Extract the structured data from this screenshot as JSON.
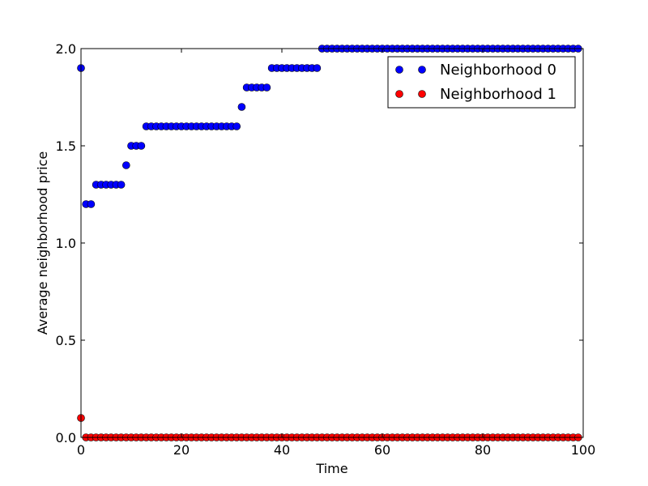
{
  "chart_data": {
    "type": "scatter",
    "xlabel": "Time",
    "ylabel": "Average neighborhood price",
    "xlim": [
      0,
      100
    ],
    "ylim": [
      0.0,
      2.0
    ],
    "x_ticks": [
      "0",
      "20",
      "40",
      "60",
      "80",
      "100"
    ],
    "y_ticks": [
      "0.0",
      "0.5",
      "1.0",
      "1.5",
      "2.0"
    ],
    "grid": false,
    "legend_position": "top-right",
    "series": [
      {
        "name": "Neighborhood 0",
        "color": "#0000ff",
        "points": [
          [
            0,
            1.9
          ],
          [
            1,
            1.2
          ],
          [
            2,
            1.2
          ],
          [
            3,
            1.3
          ],
          [
            4,
            1.3
          ],
          [
            5,
            1.3
          ],
          [
            6,
            1.3
          ],
          [
            7,
            1.3
          ],
          [
            8,
            1.3
          ],
          [
            9,
            1.4
          ],
          [
            10,
            1.5
          ],
          [
            11,
            1.5
          ],
          [
            12,
            1.5
          ],
          [
            13,
            1.6
          ],
          [
            14,
            1.6
          ],
          [
            15,
            1.6
          ],
          [
            16,
            1.6
          ],
          [
            17,
            1.6
          ],
          [
            18,
            1.6
          ],
          [
            19,
            1.6
          ],
          [
            20,
            1.6
          ],
          [
            21,
            1.6
          ],
          [
            22,
            1.6
          ],
          [
            23,
            1.6
          ],
          [
            24,
            1.6
          ],
          [
            25,
            1.6
          ],
          [
            26,
            1.6
          ],
          [
            27,
            1.6
          ],
          [
            28,
            1.6
          ],
          [
            29,
            1.6
          ],
          [
            30,
            1.6
          ],
          [
            31,
            1.6
          ],
          [
            32,
            1.7
          ],
          [
            33,
            1.8
          ],
          [
            34,
            1.8
          ],
          [
            35,
            1.8
          ],
          [
            36,
            1.8
          ],
          [
            37,
            1.8
          ],
          [
            38,
            1.9
          ],
          [
            39,
            1.9
          ],
          [
            40,
            1.9
          ],
          [
            41,
            1.9
          ],
          [
            42,
            1.9
          ],
          [
            43,
            1.9
          ],
          [
            44,
            1.9
          ],
          [
            45,
            1.9
          ],
          [
            46,
            1.9
          ],
          [
            47,
            1.9
          ],
          [
            48,
            2.0
          ],
          [
            49,
            2.0
          ],
          [
            50,
            2.0
          ],
          [
            51,
            2.0
          ],
          [
            52,
            2.0
          ],
          [
            53,
            2.0
          ],
          [
            54,
            2.0
          ],
          [
            55,
            2.0
          ],
          [
            56,
            2.0
          ],
          [
            57,
            2.0
          ],
          [
            58,
            2.0
          ],
          [
            59,
            2.0
          ],
          [
            60,
            2.0
          ],
          [
            61,
            2.0
          ],
          [
            62,
            2.0
          ],
          [
            63,
            2.0
          ],
          [
            64,
            2.0
          ],
          [
            65,
            2.0
          ],
          [
            66,
            2.0
          ],
          [
            67,
            2.0
          ],
          [
            68,
            2.0
          ],
          [
            69,
            2.0
          ],
          [
            70,
            2.0
          ],
          [
            71,
            2.0
          ],
          [
            72,
            2.0
          ],
          [
            73,
            2.0
          ],
          [
            74,
            2.0
          ],
          [
            75,
            2.0
          ],
          [
            76,
            2.0
          ],
          [
            77,
            2.0
          ],
          [
            78,
            2.0
          ],
          [
            79,
            2.0
          ],
          [
            80,
            2.0
          ],
          [
            81,
            2.0
          ],
          [
            82,
            2.0
          ],
          [
            83,
            2.0
          ],
          [
            84,
            2.0
          ],
          [
            85,
            2.0
          ],
          [
            86,
            2.0
          ],
          [
            87,
            2.0
          ],
          [
            88,
            2.0
          ],
          [
            89,
            2.0
          ],
          [
            90,
            2.0
          ],
          [
            91,
            2.0
          ],
          [
            92,
            2.0
          ],
          [
            93,
            2.0
          ],
          [
            94,
            2.0
          ],
          [
            95,
            2.0
          ],
          [
            96,
            2.0
          ],
          [
            97,
            2.0
          ],
          [
            98,
            2.0
          ],
          [
            99,
            2.0
          ]
        ]
      },
      {
        "name": "Neighborhood 1",
        "color": "#ff0000",
        "points": [
          [
            0,
            0.1
          ],
          [
            1,
            0.0
          ],
          [
            2,
            0.0
          ],
          [
            3,
            0.0
          ],
          [
            4,
            0.0
          ],
          [
            5,
            0.0
          ],
          [
            6,
            0.0
          ],
          [
            7,
            0.0
          ],
          [
            8,
            0.0
          ],
          [
            9,
            0.0
          ],
          [
            10,
            0.0
          ],
          [
            11,
            0.0
          ],
          [
            12,
            0.0
          ],
          [
            13,
            0.0
          ],
          [
            14,
            0.0
          ],
          [
            15,
            0.0
          ],
          [
            16,
            0.0
          ],
          [
            17,
            0.0
          ],
          [
            18,
            0.0
          ],
          [
            19,
            0.0
          ],
          [
            20,
            0.0
          ],
          [
            21,
            0.0
          ],
          [
            22,
            0.0
          ],
          [
            23,
            0.0
          ],
          [
            24,
            0.0
          ],
          [
            25,
            0.0
          ],
          [
            26,
            0.0
          ],
          [
            27,
            0.0
          ],
          [
            28,
            0.0
          ],
          [
            29,
            0.0
          ],
          [
            30,
            0.0
          ],
          [
            31,
            0.0
          ],
          [
            32,
            0.0
          ],
          [
            33,
            0.0
          ],
          [
            34,
            0.0
          ],
          [
            35,
            0.0
          ],
          [
            36,
            0.0
          ],
          [
            37,
            0.0
          ],
          [
            38,
            0.0
          ],
          [
            39,
            0.0
          ],
          [
            40,
            0.0
          ],
          [
            41,
            0.0
          ],
          [
            42,
            0.0
          ],
          [
            43,
            0.0
          ],
          [
            44,
            0.0
          ],
          [
            45,
            0.0
          ],
          [
            46,
            0.0
          ],
          [
            47,
            0.0
          ],
          [
            48,
            0.0
          ],
          [
            49,
            0.0
          ],
          [
            50,
            0.0
          ],
          [
            51,
            0.0
          ],
          [
            52,
            0.0
          ],
          [
            53,
            0.0
          ],
          [
            54,
            0.0
          ],
          [
            55,
            0.0
          ],
          [
            56,
            0.0
          ],
          [
            57,
            0.0
          ],
          [
            58,
            0.0
          ],
          [
            59,
            0.0
          ],
          [
            60,
            0.0
          ],
          [
            61,
            0.0
          ],
          [
            62,
            0.0
          ],
          [
            63,
            0.0
          ],
          [
            64,
            0.0
          ],
          [
            65,
            0.0
          ],
          [
            66,
            0.0
          ],
          [
            67,
            0.0
          ],
          [
            68,
            0.0
          ],
          [
            69,
            0.0
          ],
          [
            70,
            0.0
          ],
          [
            71,
            0.0
          ],
          [
            72,
            0.0
          ],
          [
            73,
            0.0
          ],
          [
            74,
            0.0
          ],
          [
            75,
            0.0
          ],
          [
            76,
            0.0
          ],
          [
            77,
            0.0
          ],
          [
            78,
            0.0
          ],
          [
            79,
            0.0
          ],
          [
            80,
            0.0
          ],
          [
            81,
            0.0
          ],
          [
            82,
            0.0
          ],
          [
            83,
            0.0
          ],
          [
            84,
            0.0
          ],
          [
            85,
            0.0
          ],
          [
            86,
            0.0
          ],
          [
            87,
            0.0
          ],
          [
            88,
            0.0
          ],
          [
            89,
            0.0
          ],
          [
            90,
            0.0
          ],
          [
            91,
            0.0
          ],
          [
            92,
            0.0
          ],
          [
            93,
            0.0
          ],
          [
            94,
            0.0
          ],
          [
            95,
            0.0
          ],
          [
            96,
            0.0
          ],
          [
            97,
            0.0
          ],
          [
            98,
            0.0
          ],
          [
            99,
            0.0
          ]
        ]
      }
    ]
  }
}
